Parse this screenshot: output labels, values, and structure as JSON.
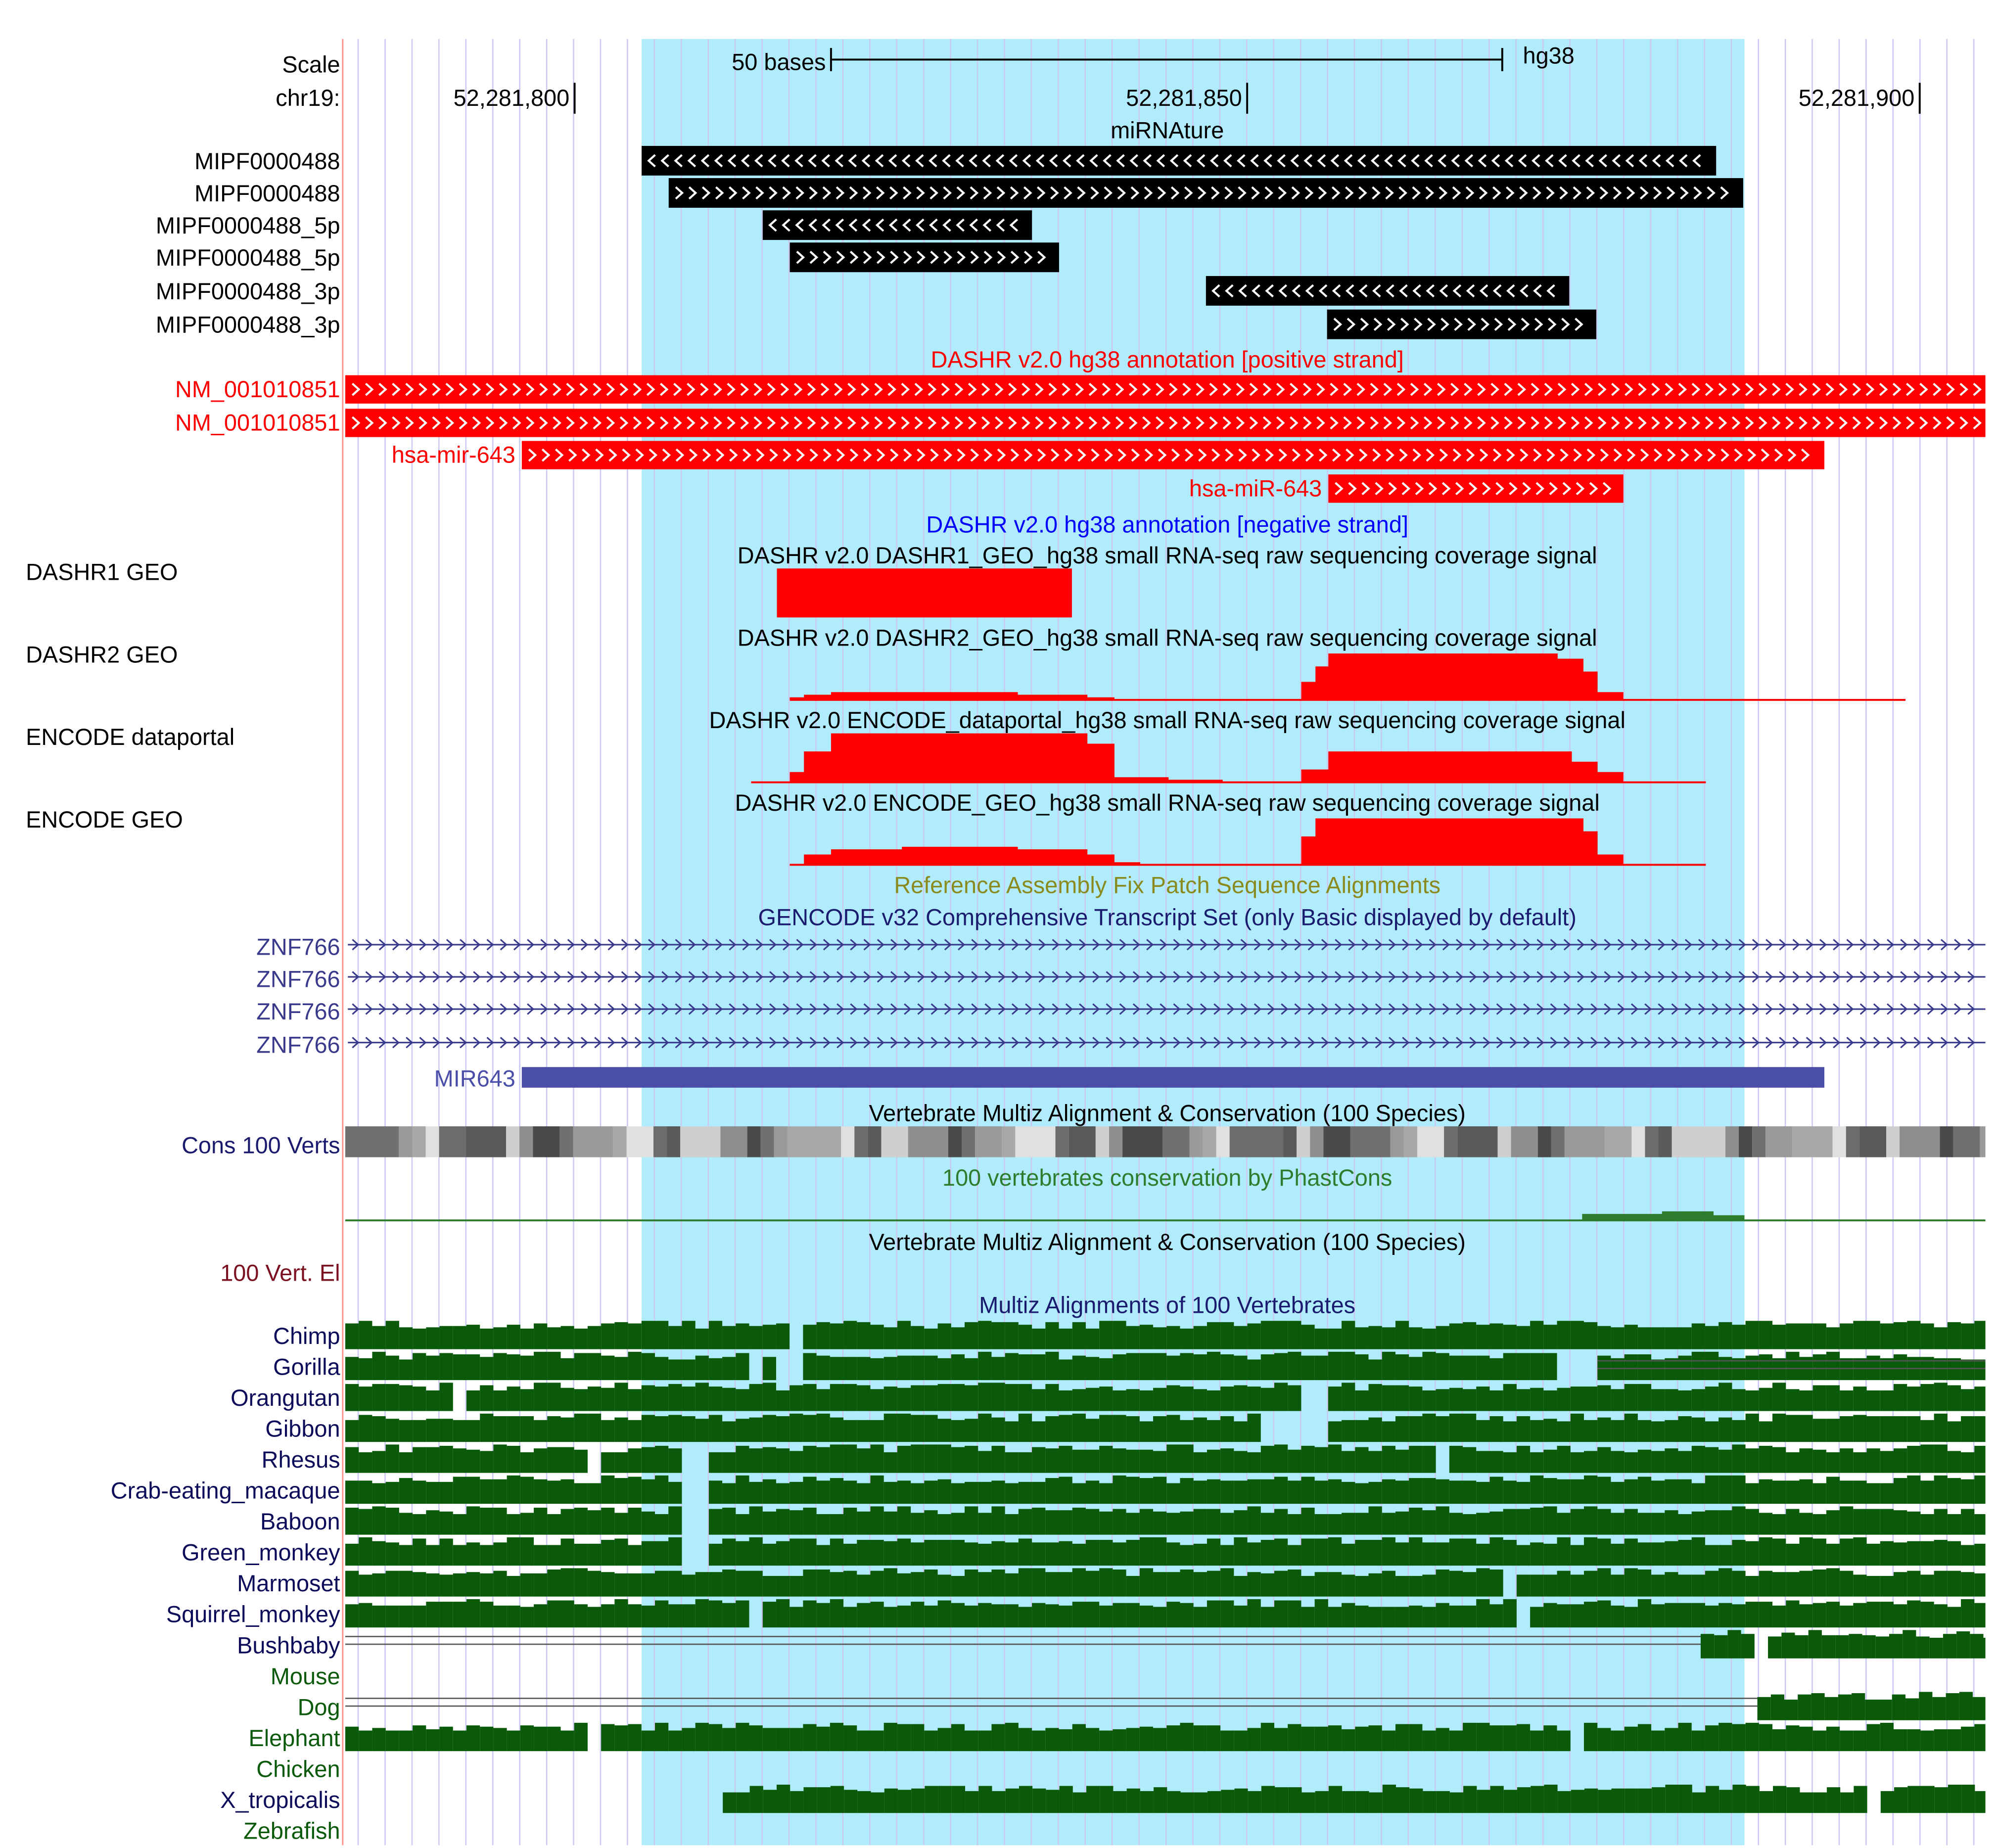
{
  "ruler": {
    "scale_label": "Scale",
    "scale_text": "50 bases",
    "assembly": "hg38",
    "chrom_label": "chr19:",
    "ticks": [
      "52,281,800",
      "52,281,850",
      "52,281,900"
    ]
  },
  "mirnature": {
    "title": "miRNAture",
    "items": [
      {
        "label": "MIPF0000488",
        "strand": "-"
      },
      {
        "label": "MIPF0000488",
        "strand": "+"
      },
      {
        "label": "MIPF0000488_5p",
        "strand": "-"
      },
      {
        "label": "MIPF0000488_5p",
        "strand": "+"
      },
      {
        "label": "MIPF0000488_3p",
        "strand": "-"
      },
      {
        "label": "MIPF0000488_3p",
        "strand": "+"
      }
    ]
  },
  "dashr_pos": {
    "title": "DASHR v2.0 hg38 annotation [positive strand]",
    "items": [
      {
        "label": "NM_001010851"
      },
      {
        "label": "NM_001010851"
      },
      {
        "label": "hsa-mir-643"
      },
      {
        "label": "hsa-miR-643"
      }
    ]
  },
  "dashr_neg": {
    "title": "DASHR v2.0 hg38 annotation [negative strand]"
  },
  "coverage": [
    {
      "label": "DASHR1 GEO",
      "title": "DASHR v2.0 DASHR1_GEO_hg38 small RNA-seq raw sequencing coverage signal"
    },
    {
      "label": "DASHR2 GEO",
      "title": "DASHR v2.0 DASHR2_GEO_hg38 small RNA-seq raw sequencing coverage signal"
    },
    {
      "label": "ENCODE dataportal",
      "title": "DASHR v2.0 ENCODE_dataportal_hg38 small RNA-seq raw sequencing coverage signal"
    },
    {
      "label": "ENCODE GEO",
      "title": "DASHR v2.0 ENCODE_GEO_hg38 small RNA-seq raw sequencing coverage signal"
    }
  ],
  "fix_patch": {
    "title": "Reference Assembly Fix Patch Sequence Alignments"
  },
  "gencode": {
    "title": "GENCODE v32 Comprehensive Transcript Set (only Basic displayed by default)",
    "items": [
      "ZNF766",
      "ZNF766",
      "ZNF766",
      "ZNF766",
      "MIR643"
    ]
  },
  "conservation": {
    "title": "Vertebrate Multiz Alignment & Conservation (100 Species)",
    "cons_label": "Cons 100 Verts",
    "phastcons_title": "100 vertebrates conservation by PhastCons",
    "title2": "Vertebrate Multiz Alignment & Conservation (100 Species)",
    "elements_label": "100 Vert. El",
    "multiz_title": "Multiz Alignments of 100 Vertebrates"
  },
  "species": [
    {
      "name": "Chimp"
    },
    {
      "name": "Gorilla"
    },
    {
      "name": "Orangutan"
    },
    {
      "name": "Gibbon"
    },
    {
      "name": "Rhesus"
    },
    {
      "name": "Crab-eating_macaque"
    },
    {
      "name": "Baboon"
    },
    {
      "name": "Green_monkey"
    },
    {
      "name": "Marmoset"
    },
    {
      "name": "Squirrel_monkey"
    },
    {
      "name": "Bushbaby"
    },
    {
      "name": "Mouse"
    },
    {
      "name": "Dog"
    },
    {
      "name": "Elephant"
    },
    {
      "name": "Chicken"
    },
    {
      "name": "X_tropicalis"
    },
    {
      "name": "Zebrafish"
    }
  ],
  "colors": {
    "highlight": "#b0ecfb",
    "grid": "#c9c9f2",
    "mirnature": "#000000",
    "dashr": "#ff0000",
    "dashr_neg_title": "#0000ff",
    "gencode": "#3a3a8c",
    "mir643": "#4a4ea8",
    "phastcons": "#2e7d2e",
    "fix_patch": "#8a8a1e",
    "multiz": "#0a5a0a",
    "elements_label": "#7a1020",
    "primate_label": "#0b0b5a",
    "nonprimate_label": "#0b5a0b",
    "left_border": "#ff8a8a"
  }
}
